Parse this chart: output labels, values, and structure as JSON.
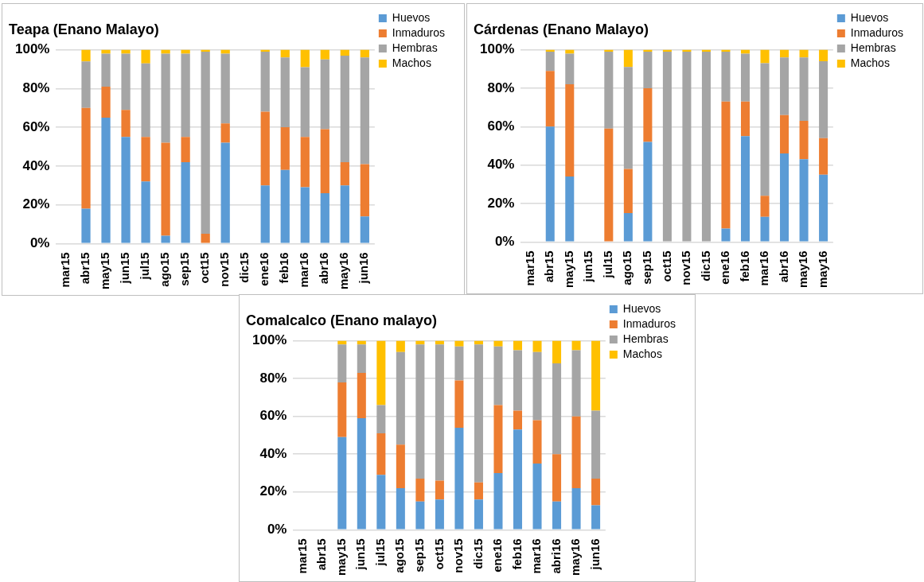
{
  "chart_data": [
    {
      "type": "bar",
      "title": "Teapa (Enano Malayo)",
      "stacked": true,
      "grid": "y",
      "legend": "top right",
      "categories": [
        "mar15",
        "abr15",
        "may15",
        "jun15",
        "jul15",
        "ago15",
        "sep15",
        "oct15",
        "nov15",
        "dic15",
        "ene16",
        "feb16",
        "mar16",
        "abr16",
        "may16",
        "jun16"
      ],
      "ylim": [
        0,
        100
      ],
      "yticks": [
        {
          "value": 0,
          "label": "0%"
        },
        {
          "value": 20,
          "label": "20%"
        },
        {
          "value": 40,
          "label": "40%"
        },
        {
          "value": 60,
          "label": "60%"
        },
        {
          "value": 80,
          "label": "80%"
        },
        {
          "value": 100,
          "label": "100%"
        }
      ],
      "series": [
        {
          "name": "Huevos",
          "color": "#5b9bd5",
          "values": [
            0,
            18,
            65,
            55,
            32,
            4,
            42,
            0,
            52,
            0,
            30,
            38,
            29,
            26,
            30,
            14
          ]
        },
        {
          "name": "Inmaduros",
          "color": "#ed7d31",
          "values": [
            0,
            52,
            16,
            14,
            23,
            48,
            13,
            5,
            10,
            0,
            38,
            22,
            26,
            33,
            12,
            27
          ]
        },
        {
          "name": "Hembras",
          "color": "#a5a5a5",
          "values": [
            0,
            24,
            17,
            29,
            38,
            46,
            43,
            94,
            36,
            0,
            31,
            36,
            36,
            36,
            55,
            55
          ]
        },
        {
          "name": "Machos",
          "color": "#ffc000",
          "values": [
            0,
            6,
            2,
            2,
            7,
            2,
            2,
            1,
            2,
            0,
            1,
            4,
            9,
            5,
            3,
            4
          ]
        }
      ]
    },
    {
      "type": "bar",
      "title": "Cárdenas (Enano Malayo)",
      "stacked": true,
      "grid": "y",
      "legend": "top right",
      "categories": [
        "mar15",
        "abr15",
        "may15",
        "jun15",
        "jul15",
        "ago15",
        "sep15",
        "oct15",
        "nov15",
        "dic15",
        "ene16",
        "feb16",
        "mar16",
        "abr16",
        "may16",
        "may16"
      ],
      "ylim": [
        0,
        100
      ],
      "yticks": [
        {
          "value": 0,
          "label": "0%"
        },
        {
          "value": 20,
          "label": "20%"
        },
        {
          "value": 40,
          "label": "40%"
        },
        {
          "value": 60,
          "label": "60%"
        },
        {
          "value": 80,
          "label": "80%"
        },
        {
          "value": 100,
          "label": "100%"
        }
      ],
      "series": [
        {
          "name": "Huevos",
          "color": "#5b9bd5",
          "values": [
            0,
            60,
            34,
            0,
            0,
            15,
            52,
            0,
            0,
            0,
            7,
            55,
            13,
            46,
            43,
            35
          ]
        },
        {
          "name": "Inmaduros",
          "color": "#ed7d31",
          "values": [
            0,
            29,
            48,
            0,
            59,
            23,
            28,
            0,
            0,
            0,
            66,
            18,
            11,
            20,
            20,
            19
          ]
        },
        {
          "name": "Hembras",
          "color": "#a5a5a5",
          "values": [
            0,
            10,
            16,
            0,
            40,
            53,
            19,
            99,
            99,
            99,
            26,
            25,
            69,
            30,
            33,
            40
          ]
        },
        {
          "name": "Machos",
          "color": "#ffc000",
          "values": [
            0,
            1,
            2,
            0,
            1,
            9,
            1,
            1,
            1,
            1,
            1,
            2,
            7,
            4,
            4,
            6
          ]
        }
      ]
    },
    {
      "type": "bar",
      "title": "Comalcalco (Enano malayo)",
      "stacked": true,
      "grid": "y",
      "legend": "top right",
      "categories": [
        "mar15",
        "abr15",
        "may15",
        "jun15",
        "jul15",
        "ago15",
        "sep15",
        "oct15",
        "nov15",
        "dic15",
        "ene16",
        "feb16",
        "mar16",
        "abri16",
        "may16",
        "jun16"
      ],
      "ylim": [
        0,
        100
      ],
      "yticks": [
        {
          "value": 0,
          "label": "0%"
        },
        {
          "value": 20,
          "label": "20%"
        },
        {
          "value": 40,
          "label": "40%"
        },
        {
          "value": 60,
          "label": "60%"
        },
        {
          "value": 80,
          "label": "80%"
        },
        {
          "value": 100,
          "label": "100%"
        }
      ],
      "series": [
        {
          "name": "Huevos",
          "color": "#5b9bd5",
          "values": [
            0,
            0,
            49,
            59,
            29,
            22,
            15,
            16,
            54,
            16,
            30,
            53,
            35,
            15,
            22,
            13
          ]
        },
        {
          "name": "Inmaduros",
          "color": "#ed7d31",
          "values": [
            0,
            0,
            29,
            24,
            22,
            23,
            12,
            10,
            25,
            9,
            36,
            10,
            23,
            25,
            38,
            14
          ]
        },
        {
          "name": "Hembras",
          "color": "#a5a5a5",
          "values": [
            0,
            0,
            20,
            15,
            15,
            49,
            71,
            72,
            18,
            73,
            31,
            32,
            36,
            48,
            35,
            36
          ]
        },
        {
          "name": "Machos",
          "color": "#ffc000",
          "values": [
            0,
            0,
            2,
            2,
            34,
            6,
            2,
            2,
            3,
            2,
            3,
            5,
            6,
            12,
            5,
            37
          ]
        }
      ]
    }
  ]
}
